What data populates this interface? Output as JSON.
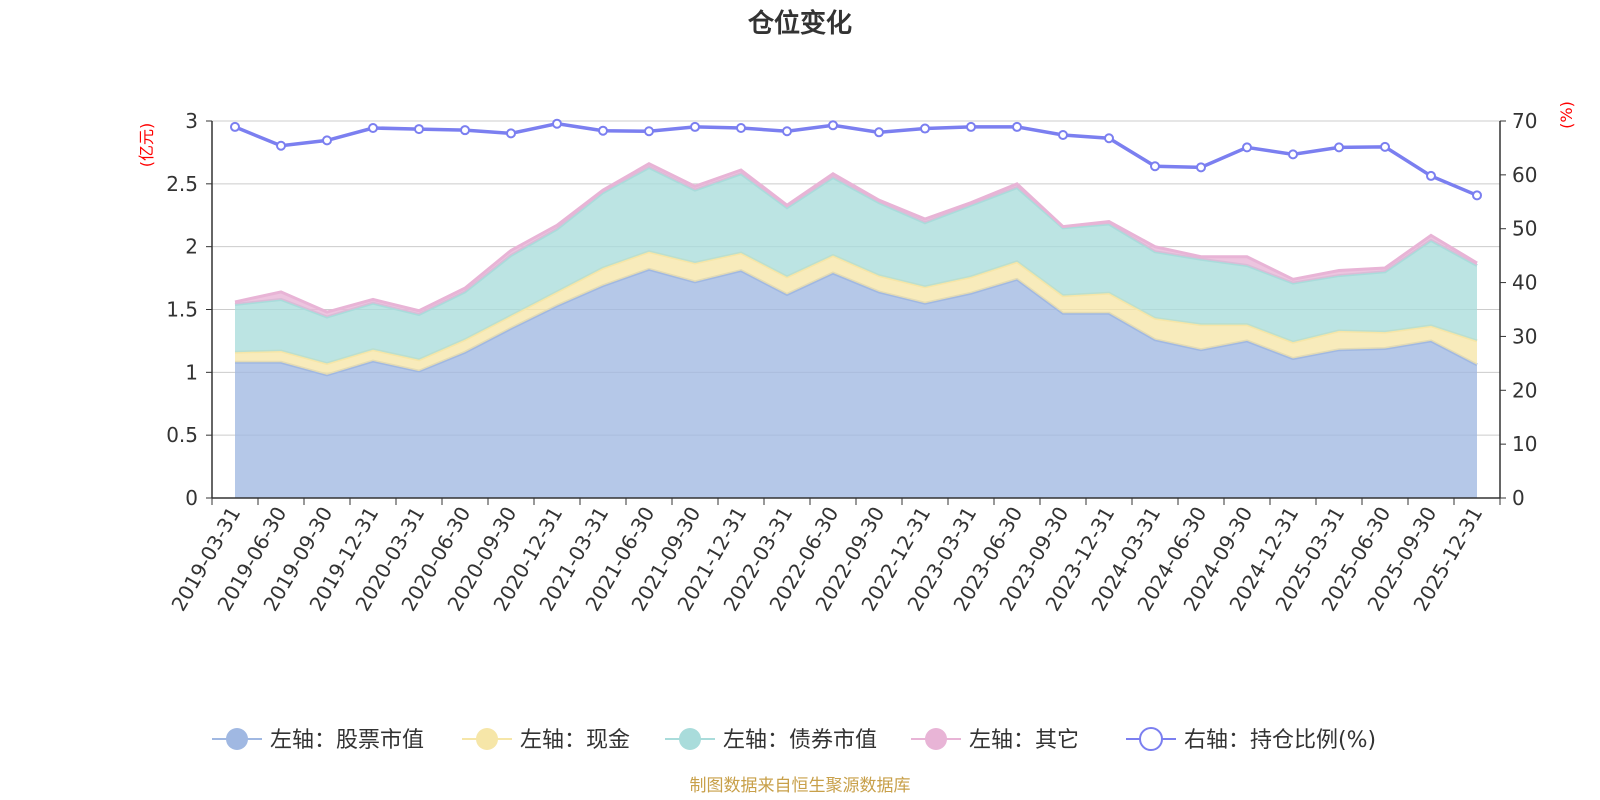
{
  "chart_data": {
    "type": "area",
    "title": "仓位变化",
    "y_left_unit": "(亿元)",
    "y_right_unit": "(%)",
    "ylim_left": [
      0,
      3
    ],
    "ylim_right": [
      0,
      70
    ],
    "y_left_ticks": [
      "0",
      "0.5",
      "1",
      "1.5",
      "2",
      "2.5",
      "3"
    ],
    "y_right_ticks": [
      "0",
      "10",
      "20",
      "30",
      "40",
      "50",
      "60",
      "70"
    ],
    "grid": true,
    "legend_position": "bottom",
    "source": "制图数据来自恒生聚源数据库",
    "categories": [
      "2019-03-31",
      "2019-06-30",
      "2019-09-30",
      "2019-12-31",
      "2020-03-31",
      "2020-06-30",
      "2020-09-30",
      "2020-12-31",
      "2021-03-31",
      "2021-06-30",
      "2021-09-30",
      "2021-12-31",
      "2022-03-31",
      "2022-06-30",
      "2022-09-30",
      "2022-12-31",
      "2023-03-31",
      "2023-06-30",
      "2023-09-30",
      "2023-12-31",
      "2024-03-31",
      "2024-06-30",
      "2024-09-30",
      "2024-12-31",
      "2025-03-31",
      "2025-06-30",
      "2025-09-30",
      "2025-12-31"
    ],
    "series": [
      {
        "name": "左轴：股票市值",
        "axis": "left",
        "kind": "stacked-area",
        "color": "#a0b8e2",
        "values": [
          1.08,
          1.08,
          0.98,
          1.09,
          1.01,
          1.16,
          1.35,
          1.53,
          1.69,
          1.82,
          1.72,
          1.81,
          1.62,
          1.79,
          1.64,
          1.55,
          1.63,
          1.74,
          1.47,
          1.47,
          1.26,
          1.18,
          1.25,
          1.11,
          1.18,
          1.19,
          1.25,
          1.06
        ]
      },
      {
        "name": "左轴：现金",
        "axis": "left",
        "kind": "stacked-area",
        "color": "#f6e6a8",
        "values": [
          0.08,
          0.09,
          0.09,
          0.09,
          0.09,
          0.1,
          0.1,
          0.11,
          0.14,
          0.14,
          0.15,
          0.14,
          0.14,
          0.14,
          0.13,
          0.13,
          0.13,
          0.14,
          0.14,
          0.16,
          0.17,
          0.2,
          0.13,
          0.13,
          0.15,
          0.13,
          0.12,
          0.19
        ]
      },
      {
        "name": "左轴：债券市值",
        "axis": "left",
        "kind": "stacked-area",
        "color": "#a9dcdb",
        "values": [
          0.38,
          0.41,
          0.37,
          0.37,
          0.36,
          0.38,
          0.48,
          0.5,
          0.6,
          0.67,
          0.58,
          0.63,
          0.55,
          0.62,
          0.58,
          0.51,
          0.57,
          0.59,
          0.54,
          0.55,
          0.53,
          0.52,
          0.47,
          0.47,
          0.44,
          0.48,
          0.68,
          0.6
        ]
      },
      {
        "name": "左轴：其它",
        "axis": "left",
        "kind": "stacked-area",
        "color": "#e8b4d6",
        "values": [
          0.02,
          0.06,
          0.04,
          0.03,
          0.03,
          0.03,
          0.04,
          0.03,
          0.02,
          0.03,
          0.03,
          0.03,
          0.02,
          0.03,
          0.02,
          0.03,
          0.02,
          0.03,
          0.01,
          0.02,
          0.04,
          0.02,
          0.07,
          0.03,
          0.04,
          0.03,
          0.04,
          0.02
        ]
      },
      {
        "name": "右轴：持仓比例(%)",
        "axis": "right",
        "kind": "line",
        "color": "#7b7ff0",
        "values": [
          68.9,
          65.4,
          66.4,
          68.7,
          68.5,
          68.3,
          67.7,
          69.5,
          68.2,
          68.1,
          68.9,
          68.7,
          68.1,
          69.2,
          67.9,
          68.6,
          68.9,
          68.9,
          67.4,
          66.8,
          61.6,
          61.4,
          65.1,
          63.8,
          65.1,
          65.2,
          59.8,
          56.2
        ]
      }
    ]
  }
}
